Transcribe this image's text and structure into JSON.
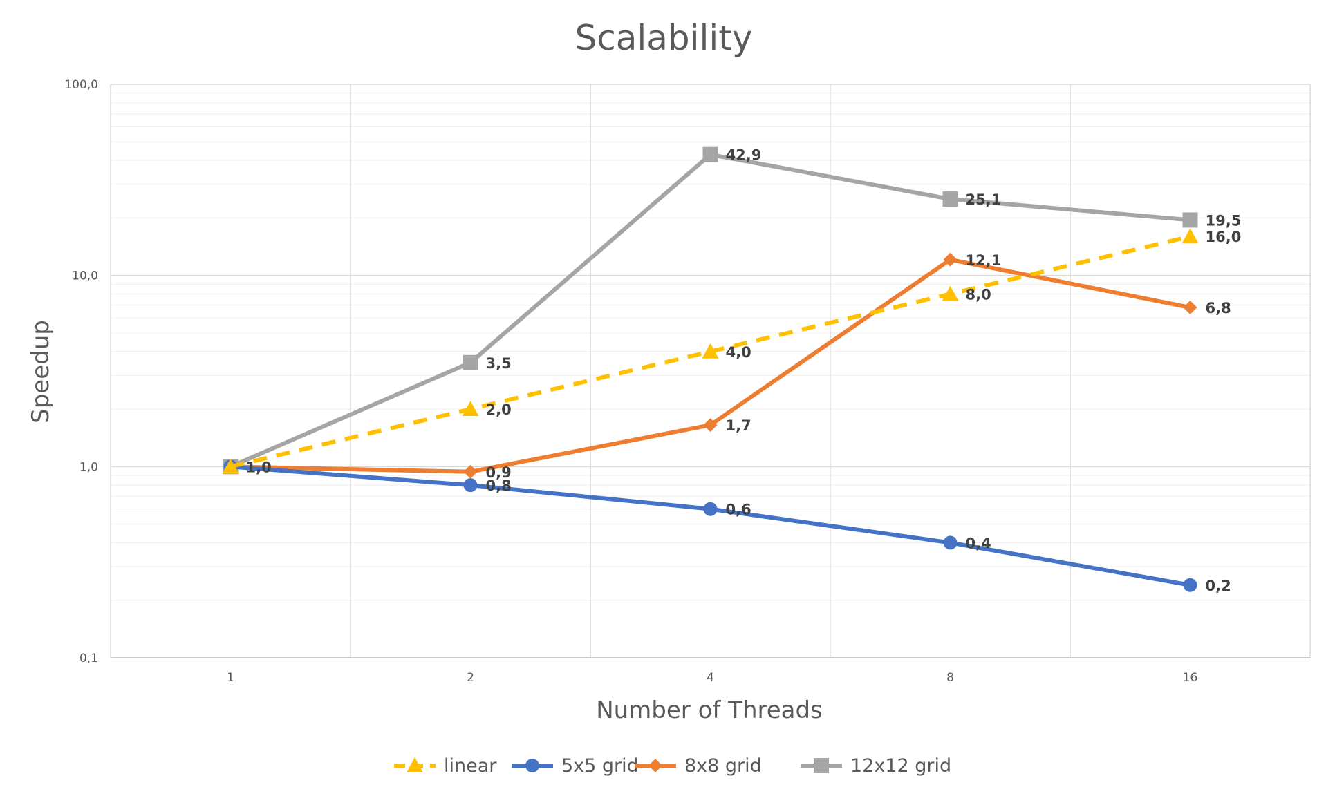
{
  "chart_data": {
    "type": "line",
    "title": "Scalability",
    "xlabel": "Number of Threads",
    "ylabel": "Speedup",
    "categories": [
      "1",
      "2",
      "4",
      "8",
      "16"
    ],
    "y_scale": "log",
    "ylim": [
      0.1,
      100
    ],
    "y_ticks": [
      "0,1",
      "1,0",
      "10,0",
      "100,0"
    ],
    "grid": true,
    "legend_position": "bottom",
    "series": [
      {
        "name": "linear",
        "values": [
          1.0,
          2.0,
          4.0,
          8.0,
          16.0
        ],
        "labels": [
          "",
          "2,0",
          "4,0",
          "8,0",
          "16,0"
        ],
        "color": "#FFC000",
        "marker": "triangle",
        "dashed": true
      },
      {
        "name": "5x5 grid",
        "values": [
          1.0,
          0.8,
          0.6,
          0.4,
          0.24
        ],
        "labels": [
          "",
          "0,8",
          "0,6",
          "0,4",
          "0,2"
        ],
        "color": "#4472C4",
        "marker": "circle",
        "dashed": false
      },
      {
        "name": "8x8 grid",
        "values": [
          1.0,
          0.94,
          1.65,
          12.1,
          6.8
        ],
        "labels": [
          "",
          "0,9",
          "1,7",
          "12,1",
          "6,8"
        ],
        "color": "#ED7D31",
        "marker": "diamond",
        "dashed": false
      },
      {
        "name": "12x12 grid",
        "values": [
          1.0,
          3.5,
          42.9,
          25.1,
          19.5
        ],
        "labels": [
          "1,0",
          "3,5",
          "42,9",
          "25,1",
          "19,5"
        ],
        "color": "#A5A5A5",
        "marker": "square",
        "dashed": false
      }
    ]
  }
}
